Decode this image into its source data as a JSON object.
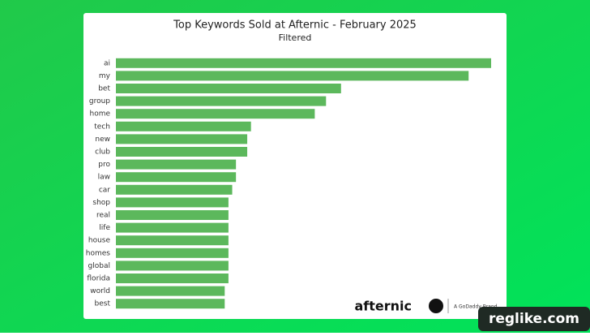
{
  "chart_data": {
    "type": "barh",
    "title": "Top Keywords Sold at Afternic - February 2025",
    "subtitle": "Filtered",
    "categories": [
      "ai",
      "my",
      "bet",
      "group",
      "home",
      "tech",
      "new",
      "club",
      "pro",
      "law",
      "car",
      "shop",
      "real",
      "life",
      "house",
      "homes",
      "global",
      "florida",
      "world",
      "best"
    ],
    "values": [
      100,
      94,
      60,
      56,
      53,
      36,
      35,
      35,
      32,
      32,
      31,
      30,
      30,
      30,
      30,
      30,
      30,
      30,
      29,
      29
    ],
    "color": "#5cb85c",
    "xlim": [
      0,
      100
    ]
  },
  "logo": "afternic",
  "logo_tagline": "A GoDaddy Brand",
  "watermark": "reglike.com"
}
